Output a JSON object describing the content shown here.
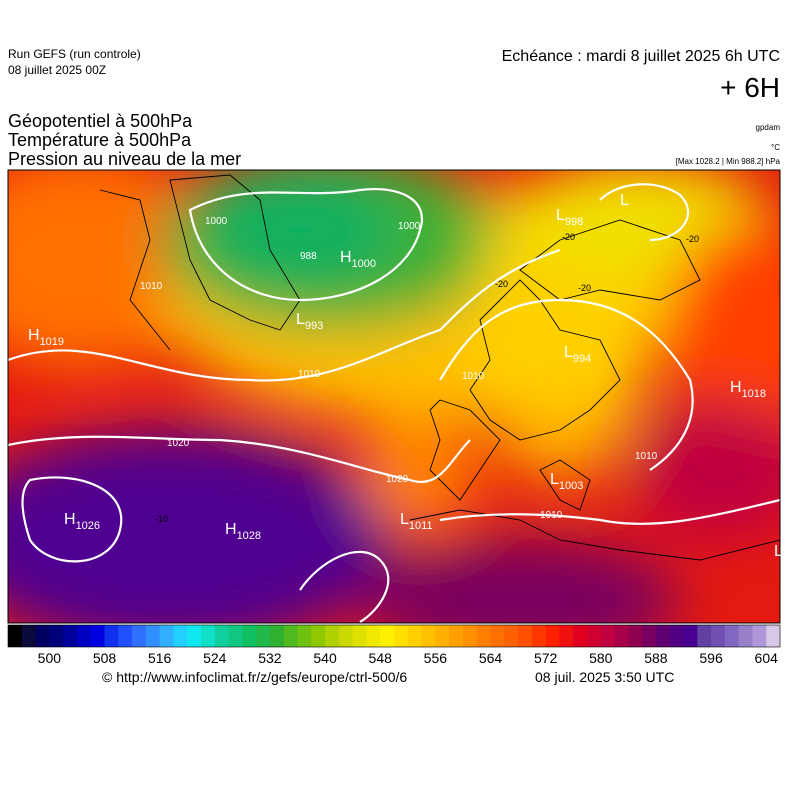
{
  "header": {
    "run": "Run GEFS (run controle)",
    "run_date": "08 juillet 2025 00Z",
    "echeance": "Echéance : mardi 8 juillet 2025 6h UTC",
    "step": "+ 6H",
    "title_lines": [
      "Géopotentiel à 500hPa",
      "Température à 500hPa",
      "Pression au niveau de la mer"
    ],
    "unit_geo": "gpdam",
    "unit_temp": "°C",
    "pressure_range": "[Max 1028.2 | Min 988.2] hPa"
  },
  "centers": [
    {
      "letter": "H",
      "value": 1019
    },
    {
      "letter": "H",
      "value": 1026
    },
    {
      "letter": "H",
      "value": 1028
    },
    {
      "letter": "H",
      "value": 1000
    },
    {
      "letter": "L",
      "value": 993
    },
    {
      "letter": "L",
      "value": 998
    },
    {
      "letter": "L"
    },
    {
      "letter": "L",
      "value": 994
    },
    {
      "letter": "H",
      "value": 1018
    },
    {
      "letter": "L",
      "value": 1003
    },
    {
      "letter": "L",
      "value": 1011
    },
    {
      "letter": "L"
    }
  ],
  "isobar_labels": [
    1020,
    1010,
    1000,
    988,
    1000,
    1010,
    1020,
    1010,
    1010,
    1010
  ],
  "temperature_labels": [
    -20,
    -20,
    -20,
    -20,
    -10
  ],
  "scale": {
    "lim": [
      494,
      606
    ],
    "ticks": [
      500,
      508,
      516,
      524,
      532,
      540,
      548,
      556,
      564,
      572,
      580,
      588,
      596,
      604
    ],
    "colors": [
      "#000000",
      "#0a0a3c",
      "#000060",
      "#00007a",
      "#00009a",
      "#0000c0",
      "#0000e0",
      "#1030f0",
      "#2050ff",
      "#3070ff",
      "#3090ff",
      "#30b0ff",
      "#20d0ff",
      "#10e8f0",
      "#10e0c8",
      "#10d0a0",
      "#10c880",
      "#10c060",
      "#20b848",
      "#30b030",
      "#50b820",
      "#70c010",
      "#90c800",
      "#b0d000",
      "#c8d800",
      "#e0e000",
      "#f0e800",
      "#ffef00",
      "#ffe000",
      "#ffd000",
      "#ffc000",
      "#ffb000",
      "#ffa000",
      "#ff9000",
      "#ff8000",
      "#ff7000",
      "#ff6000",
      "#ff5000",
      "#ff3800",
      "#ff2000",
      "#f01010",
      "#e00020",
      "#d00030",
      "#c00040",
      "#a80048",
      "#900050",
      "#780060",
      "#600070",
      "#500080",
      "#480090",
      "#6040a0",
      "#7050b0",
      "#8068c0",
      "#9880c8",
      "#b098d8",
      "#d8c8e8"
    ]
  },
  "footer": {
    "url": "© http://www.infoclimat.fr/z/gefs/europe/ctrl-500/6",
    "time": "08 juil. 2025  3:50 UTC"
  }
}
